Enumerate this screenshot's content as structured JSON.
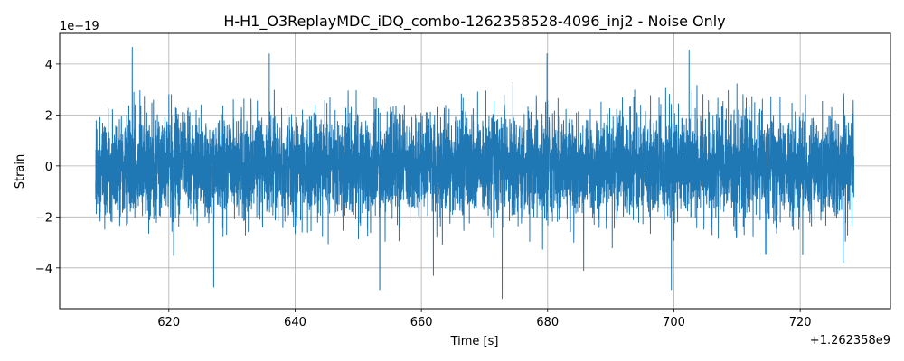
{
  "chart_data": {
    "type": "line",
    "title": "H-H1_O3ReplayMDC_iDQ_combo-1262358528-4096_inj2 - Noise Only",
    "xlabel": "Time [s]",
    "ylabel": "Strain",
    "x_offset_label": "+1.262358e9",
    "y_scale_label": "1e−19",
    "xlim": [
      602.7,
      734.3
    ],
    "ylim": [
      -5.6,
      5.2
    ],
    "x_ticks": [
      620,
      640,
      660,
      680,
      700,
      720
    ],
    "x_tick_labels": [
      "620",
      "640",
      "660",
      "680",
      "700",
      "720"
    ],
    "y_ticks": [
      -4,
      -2,
      0,
      2,
      4
    ],
    "y_tick_labels": [
      "−4",
      "−2",
      "0",
      "2",
      "4"
    ],
    "grid": true,
    "color": "#1f77b4",
    "series": [
      {
        "x_range": [
          608.4,
          728.5
        ],
        "y_range": [
          -5.2,
          4.65
        ],
        "rms": 1.0,
        "peaks": [
          {
            "x": 614.2,
            "y": 4.65
          },
          {
            "x": 635.9,
            "y": 4.4
          },
          {
            "x": 653.4,
            "y": -4.85
          },
          {
            "x": 661.9,
            "y": -4.3
          },
          {
            "x": 672.8,
            "y": -5.2
          },
          {
            "x": 679.9,
            "y": 4.4
          },
          {
            "x": 685.7,
            "y": -4.1
          },
          {
            "x": 699.6,
            "y": -4.85
          },
          {
            "x": 702.4,
            "y": 4.55
          },
          {
            "x": 627.1,
            "y": -4.75
          }
        ]
      }
    ]
  }
}
